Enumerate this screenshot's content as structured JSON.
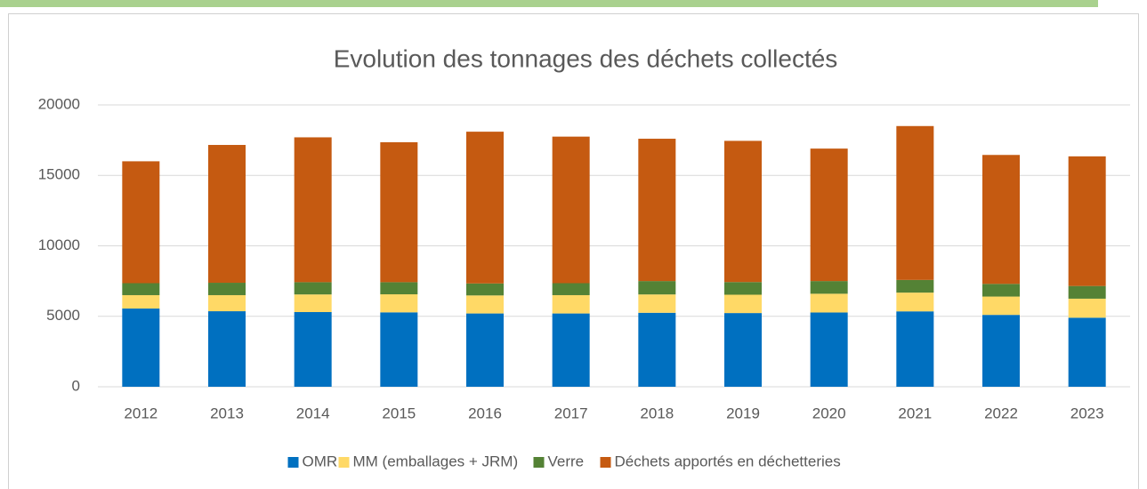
{
  "chart_data": {
    "type": "stacked_bar",
    "title": "Evolution des tonnages des déchets collectés",
    "categories": [
      "2012",
      "2013",
      "2014",
      "2015",
      "2016",
      "2017",
      "2018",
      "2019",
      "2020",
      "2021",
      "2022",
      "2023"
    ],
    "series": [
      {
        "name": "OMR",
        "color": "#0070c0",
        "values": [
          5550,
          5360,
          5300,
          5280,
          5200,
          5200,
          5250,
          5230,
          5270,
          5350,
          5100,
          4900
        ]
      },
      {
        "name": "MM (emballages + JRM)",
        "color": "#ffd966",
        "values": [
          950,
          1140,
          1250,
          1280,
          1280,
          1300,
          1300,
          1300,
          1330,
          1330,
          1300,
          1350
        ]
      },
      {
        "name": "Verre",
        "color": "#548235",
        "values": [
          850,
          880,
          870,
          860,
          850,
          850,
          950,
          900,
          900,
          900,
          900,
          900
        ]
      },
      {
        "name": "Déchets apportés en déchetteries",
        "color": "#c55a11",
        "values": [
          8650,
          9780,
          10280,
          9930,
          10770,
          10400,
          10100,
          10020,
          9400,
          10920,
          9150,
          9200
        ]
      }
    ],
    "ylim": [
      0,
      20000
    ],
    "yticks": [
      0,
      5000,
      10000,
      15000,
      20000
    ],
    "grid": true,
    "legend": "bottom"
  }
}
